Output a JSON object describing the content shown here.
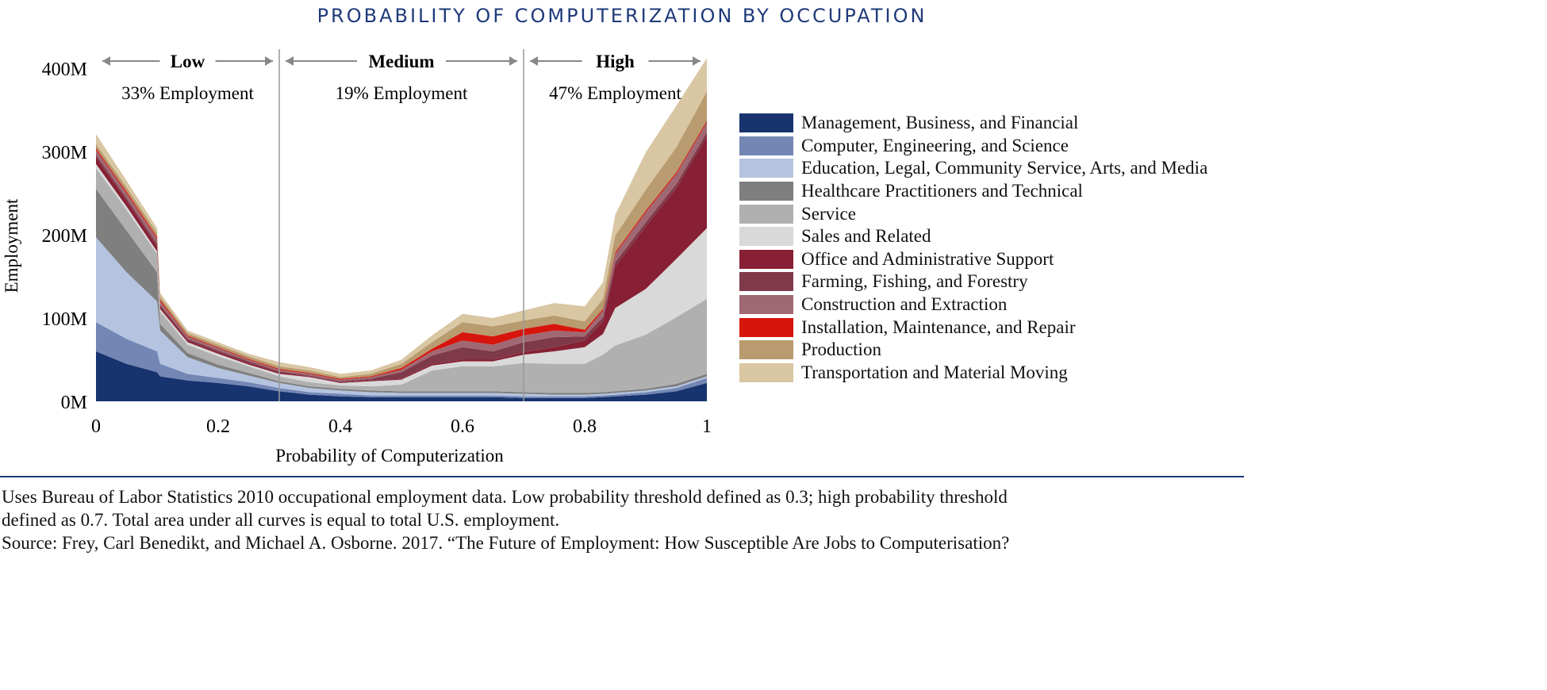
{
  "title": "PROBABILITY OF COMPUTERIZATION BY OCCUPATION",
  "chart_data": {
    "type": "area",
    "stacked": true,
    "xlabel": "Probability of Computerization",
    "ylabel": "Employment",
    "xlim": [
      0,
      1
    ],
    "ylim": [
      0,
      400
    ],
    "x_ticks": [
      "0",
      "0.2",
      "0.4",
      "0.6",
      "0.8",
      "1"
    ],
    "x_tick_values": [
      0,
      0.2,
      0.4,
      0.6,
      0.8,
      1
    ],
    "y_ticks": [
      "0M",
      "100M",
      "200M",
      "300M",
      "400M"
    ],
    "y_tick_values": [
      0,
      100,
      200,
      300,
      400
    ],
    "legend_position": "right",
    "thresholds": [
      0.3,
      0.7
    ],
    "regions": [
      {
        "name": "Low",
        "share": "33% Employment"
      },
      {
        "name": "Medium",
        "share": "19% Employment"
      },
      {
        "name": "High",
        "share": "47% Employment"
      }
    ],
    "x": [
      0,
      0.05,
      0.1,
      0.105,
      0.15,
      0.2,
      0.25,
      0.3,
      0.35,
      0.4,
      0.45,
      0.5,
      0.55,
      0.6,
      0.65,
      0.7,
      0.75,
      0.8,
      0.83,
      0.85,
      0.9,
      0.95,
      1.0
    ],
    "series": [
      {
        "name": "Management, Business, and Financial",
        "color": "#17346f",
        "values": [
          60,
          45,
          35,
          30,
          25,
          22,
          18,
          12,
          8,
          6,
          5,
          5,
          5,
          5,
          5,
          4,
          4,
          4,
          5,
          6,
          8,
          12,
          22
        ]
      },
      {
        "name": "Computer, Engineering, and Science",
        "color": "#7486b4",
        "values": [
          35,
          30,
          25,
          15,
          8,
          6,
          5,
          4,
          3,
          3,
          2,
          2,
          2,
          2,
          2,
          2,
          2,
          2,
          2,
          2,
          3,
          4,
          6
        ]
      },
      {
        "name": "Education, Legal, Community Service, Arts, and Media",
        "color": "#b4c4e0",
        "values": [
          102,
          80,
          60,
          40,
          20,
          12,
          8,
          6,
          5,
          4,
          4,
          3,
          3,
          3,
          3,
          3,
          2,
          2,
          2,
          2,
          2,
          2,
          2
        ]
      },
      {
        "name": "Healthcare Practitioners and Technical",
        "color": "#7f7f7f",
        "values": [
          58,
          50,
          35,
          8,
          5,
          4,
          3,
          2,
          2,
          2,
          2,
          2,
          2,
          2,
          2,
          2,
          2,
          2,
          2,
          2,
          2,
          3,
          3
        ]
      },
      {
        "name": "Service",
        "color": "#b0b0b0",
        "values": [
          25,
          25,
          22,
          15,
          10,
          10,
          8,
          6,
          5,
          4,
          5,
          8,
          25,
          30,
          30,
          35,
          35,
          35,
          45,
          55,
          65,
          80,
          90
        ]
      },
      {
        "name": "Sales and Related",
        "color": "#d9d9d9",
        "values": [
          5,
          4,
          3,
          3,
          3,
          3,
          2,
          3,
          6,
          3,
          6,
          6,
          6,
          6,
          6,
          10,
          15,
          20,
          25,
          45,
          55,
          70,
          85
        ]
      },
      {
        "name": "Office and Administrative Support",
        "color": "#872034",
        "values": [
          8,
          7,
          6,
          3,
          2,
          2,
          2,
          2,
          1,
          1,
          1,
          1,
          2,
          2,
          2,
          3,
          5,
          8,
          15,
          50,
          75,
          85,
          110
        ]
      },
      {
        "name": "Farming, Fishing, and Forestry",
        "color": "#7f3a4a",
        "values": [
          3,
          3,
          3,
          2,
          2,
          2,
          2,
          1,
          1,
          1,
          2,
          8,
          10,
          15,
          10,
          12,
          12,
          5,
          5,
          5,
          5,
          5,
          5
        ]
      },
      {
        "name": "Construction and Extraction",
        "color": "#a06872",
        "values": [
          6,
          6,
          6,
          4,
          3,
          3,
          2,
          2,
          2,
          2,
          2,
          3,
          5,
          8,
          8,
          8,
          8,
          5,
          8,
          10,
          12,
          12,
          12
        ]
      },
      {
        "name": "Installation, Maintenance, and Repair",
        "color": "#d7150d",
        "values": [
          2,
          2,
          2,
          2,
          1,
          1,
          1,
          1,
          1,
          1,
          1,
          2,
          3,
          10,
          10,
          8,
          8,
          3,
          2,
          2,
          2,
          2,
          2
        ]
      },
      {
        "name": "Production",
        "color": "#b89b6e",
        "values": [
          5,
          5,
          5,
          4,
          3,
          3,
          3,
          3,
          3,
          2,
          3,
          5,
          8,
          12,
          12,
          10,
          10,
          10,
          12,
          20,
          25,
          30,
          35
        ]
      },
      {
        "name": "Transportation and Material Moving",
        "color": "#d9c6a3",
        "values": [
          12,
          8,
          6,
          4,
          3,
          3,
          3,
          5,
          4,
          4,
          4,
          5,
          8,
          10,
          10,
          12,
          15,
          18,
          20,
          25,
          45,
          50,
          40
        ]
      }
    ]
  },
  "notes": [
    "Uses Bureau of Labor Statistics 2010 occupational employment data. Low probability threshold defined as 0.3; high probability threshold",
    "defined as 0.7. Total area under all curves is equal to total U.S. employment.",
    "Source: Frey, Carl Benedikt, and Michael A. Osborne. 2017. “The Future of Employment: How Susceptible Are Jobs to Computerisation?"
  ]
}
